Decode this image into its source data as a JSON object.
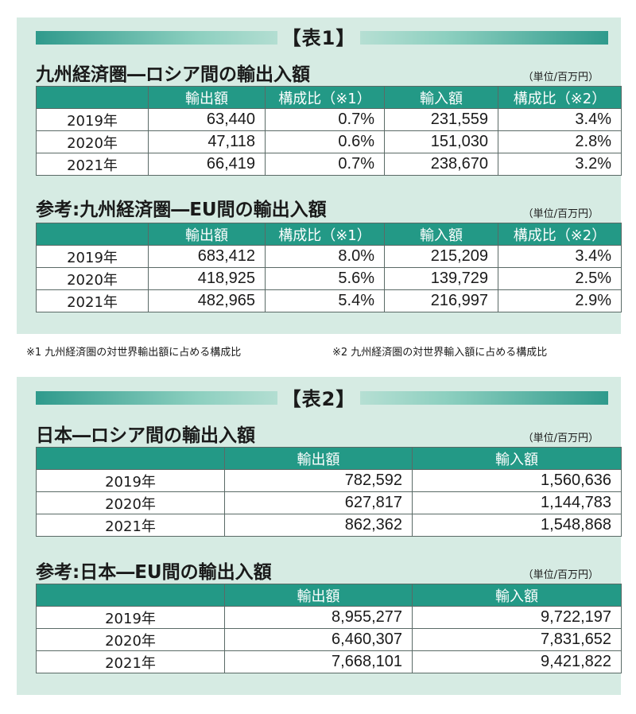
{
  "table1": {
    "heading": "【表1】",
    "section_a": {
      "title": "九州経済圏―ロシア間の輸出入額",
      "unit": "（単位/百万円）",
      "headers": [
        "",
        "輸出額",
        "構成比（※1）",
        "輸入額",
        "構成比（※2）"
      ],
      "rows": [
        [
          "2019年",
          "63,440",
          "0.7%",
          "231,559",
          "3.4%"
        ],
        [
          "2020年",
          "47,118",
          "0.6%",
          "151,030",
          "2.8%"
        ],
        [
          "2021年",
          "66,419",
          "0.7%",
          "238,670",
          "3.2%"
        ]
      ]
    },
    "section_b": {
      "title": "参考:九州経済圏―EU間の輸出入額",
      "unit": "（単位/百万円）",
      "headers": [
        "",
        "輸出額",
        "構成比（※1）",
        "輸入額",
        "構成比（※2）"
      ],
      "rows": [
        [
          "2019年",
          "683,412",
          "8.0%",
          "215,209",
          "3.4%"
        ],
        [
          "2020年",
          "418,925",
          "5.6%",
          "139,729",
          "2.5%"
        ],
        [
          "2021年",
          "482,965",
          "5.4%",
          "216,997",
          "2.9%"
        ]
      ]
    }
  },
  "notes": {
    "note1": "※1 九州経済圏の対世界輸出額に占める構成比",
    "note2": "※2 九州経済圏の対世界輸入額に占める構成比"
  },
  "table2": {
    "heading": "【表2】",
    "section_a": {
      "title": "日本―ロシア間の輸出入額",
      "unit": "（単位/百万円）",
      "headers": [
        "",
        "輸出額",
        "輸入額"
      ],
      "rows": [
        [
          "2019年",
          "782,592",
          "1,560,636"
        ],
        [
          "2020年",
          "627,817",
          "1,144,783"
        ],
        [
          "2021年",
          "862,362",
          "1,548,868"
        ]
      ]
    },
    "section_b": {
      "title": "参考:日本―EU間の輸出入額",
      "unit": "（単位/百万円）",
      "headers": [
        "",
        "輸出額",
        "輸入額"
      ],
      "rows": [
        [
          "2019年",
          "8,955,277",
          "9,722,197"
        ],
        [
          "2020年",
          "6,460,307",
          "7,831,652"
        ],
        [
          "2021年",
          "7,668,101",
          "9,421,822"
        ]
      ]
    }
  },
  "colors": {
    "panel_bg": "#d6ebe3",
    "header_teal": "#239986",
    "banner_teal": "#2f9a8c"
  }
}
